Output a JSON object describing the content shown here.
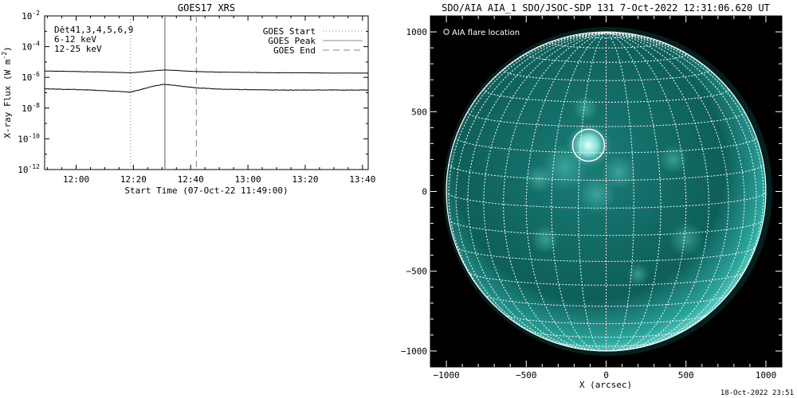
{
  "footer_timestamp": "18-Oct-2022 23:51",
  "chart_data": [
    {
      "type": "line",
      "title": "GOES17 XRS",
      "xlabel": "Start Time (07-Oct-22 11:49:00)",
      "ylabel_main": "X-ray Flux (W m",
      "ylabel_sup": "-2",
      "ylabel_close": ")",
      "ylog": true,
      "xlim": [
        "11:49",
        "13:42"
      ],
      "ylim": [
        1e-12,
        0.01
      ],
      "x_ticks": [
        "12:00",
        "12:20",
        "12:40",
        "13:00",
        "13:20",
        "13:40"
      ],
      "y_ticks": [
        {
          "base": "10",
          "exp": "-2",
          "value": 0.01
        },
        {
          "base": "10",
          "exp": "-4",
          "value": 0.0001
        },
        {
          "base": "10",
          "exp": "-6",
          "value": 1e-06
        },
        {
          "base": "10",
          "exp": "-8",
          "value": 1e-08
        },
        {
          "base": "10",
          "exp": "-10",
          "value": 1e-10
        },
        {
          "base": "10",
          "exp": "-12",
          "value": 1e-12
        }
      ],
      "detector_label": "Dĕt41,3,4,5,6,9",
      "band_labels": [
        {
          "text": "6-12 keV",
          "color": "#e000e0"
        },
        {
          "text": "12-25 keV",
          "color": "#00cc00"
        }
      ],
      "legend": {
        "position": "top-right",
        "entries": [
          {
            "label": "GOES Start",
            "style": "dotted"
          },
          {
            "label": "GOES Peak",
            "style": "solid"
          },
          {
            "label": "GOES End",
            "style": "dashed"
          }
        ]
      },
      "markers": {
        "start": "12:19",
        "peak": "12:31",
        "end": "12:42"
      },
      "series": [
        {
          "band": "long",
          "x": [
            "11:49",
            "11:55",
            "12:00",
            "12:05",
            "12:10",
            "12:15",
            "12:19",
            "12:22",
            "12:25",
            "12:28",
            "12:31",
            "12:34",
            "12:38",
            "12:42",
            "12:46",
            "12:50",
            "13:00",
            "13:10",
            "13:20",
            "13:30",
            "13:40",
            "13:42"
          ],
          "y": [
            2.6e-06,
            2.5e-06,
            2.4e-06,
            2.3e-06,
            2.2e-06,
            2.1e-06,
            2e-06,
            2.2e-06,
            2.5e-06,
            2.8e-06,
            3e-06,
            2.9e-06,
            2.6e-06,
            2.4e-06,
            2.3e-06,
            2.2e-06,
            2.1e-06,
            2e-06,
            2e-06,
            1.9e-06,
            1.9e-06,
            1.9e-06
          ]
        },
        {
          "band": "short",
          "x": [
            "11:49",
            "11:55",
            "12:00",
            "12:05",
            "12:10",
            "12:15",
            "12:19",
            "12:22",
            "12:25",
            "12:28",
            "12:31",
            "12:34",
            "12:38",
            "12:42",
            "12:46",
            "12:50",
            "13:00",
            "13:10",
            "13:20",
            "13:30",
            "13:40",
            "13:42"
          ],
          "y": [
            1.8e-07,
            1.7e-07,
            1.6e-07,
            1.5e-07,
            1.35e-07,
            1.2e-07,
            1.1e-07,
            1.5e-07,
            2.2e-07,
            3e-07,
            3.5e-07,
            3.1e-07,
            2.5e-07,
            2.1e-07,
            1.9e-07,
            1.7e-07,
            1.6e-07,
            1.5e-07,
            1.5e-07,
            1.5e-07,
            1.5e-07,
            1.5e-07
          ]
        }
      ]
    },
    {
      "type": "image",
      "title": "SDO/AIA AIA_1 SDO/JSOC-SDP 131  7-Oct-2022 12:31:06.620 UT",
      "xlabel": "X (arcsec)",
      "xlim": [
        -1100,
        1100
      ],
      "ylim": [
        -1100,
        1100
      ],
      "x_ticks": [
        -1000,
        -500,
        0,
        500,
        1000
      ],
      "y_ticks": [
        1000,
        500,
        0,
        -500,
        -1000
      ],
      "x_tick_labels": [
        "−1000",
        "−500",
        "0",
        "500",
        "1000"
      ],
      "y_tick_labels": [
        "1000",
        "500",
        "0",
        "−500",
        "−1000"
      ],
      "legend_label": "AIA flare location",
      "solar_radius_arcsec": 1000,
      "grid_spacing_deg": 10,
      "flare_location": {
        "x": -110,
        "y": 290,
        "radius": 100
      },
      "colors": {
        "disk": "#0f6f6a",
        "bright": "#9be8e0",
        "background": "#000000",
        "grid": "#ffffff"
      }
    }
  ]
}
